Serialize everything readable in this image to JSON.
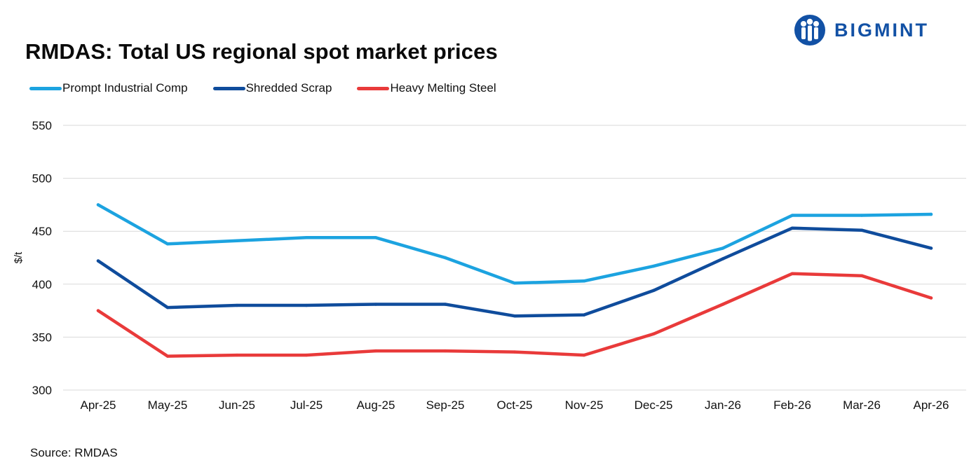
{
  "brand": {
    "name": "BIGMINT",
    "logo_icon": "bigmint-people-logo-icon",
    "color": "#1251a5"
  },
  "source": "Source: RMDAS",
  "chart_data": {
    "type": "line",
    "title": "RMDAS: Total US regional spot market prices",
    "xlabel": "",
    "ylabel": "$/t",
    "ylim": [
      300,
      550
    ],
    "yticks": [
      300,
      350,
      400,
      450,
      500,
      550
    ],
    "grid": true,
    "legend_position": "top-left",
    "categories": [
      "Apr-25",
      "May-25",
      "Jun-25",
      "Jul-25",
      "Aug-25",
      "Sep-25",
      "Oct-25",
      "Nov-25",
      "Dec-25",
      "Jan-26",
      "Feb-26",
      "Mar-26",
      "Apr-26"
    ],
    "series": [
      {
        "name": "Prompt Industrial Comp",
        "color": "#1ca3e0",
        "values": [
          475,
          438,
          441,
          444,
          444,
          425,
          401,
          403,
          417,
          434,
          465,
          465,
          466
        ]
      },
      {
        "name": "Shredded Scrap",
        "color": "#0f4c9c",
        "values": [
          422,
          378,
          380,
          380,
          381,
          381,
          370,
          371,
          394,
          424,
          453,
          451,
          434
        ]
      },
      {
        "name": "Heavy Melting Steel",
        "color": "#e93a3a",
        "values": [
          375,
          332,
          333,
          333,
          337,
          337,
          336,
          333,
          353,
          381,
          410,
          408,
          387
        ]
      }
    ]
  }
}
